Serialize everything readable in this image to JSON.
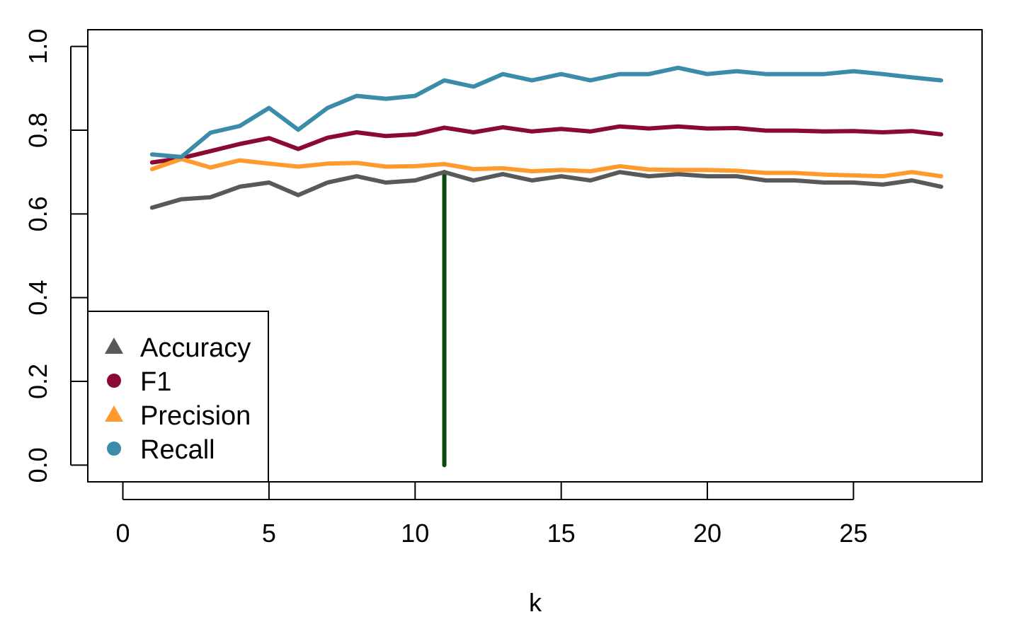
{
  "chart_data": {
    "type": "line",
    "title": "",
    "xlabel": "k",
    "ylabel": "",
    "xlim": [
      -1.2,
      29.4
    ],
    "ylim": [
      -0.04,
      1.04
    ],
    "xticks": [
      0,
      5,
      10,
      15,
      20,
      25
    ],
    "xtick_labels": [
      "0",
      "5",
      "10",
      "15",
      "20",
      "25"
    ],
    "yticks": [
      0.0,
      0.2,
      0.4,
      0.6,
      0.8,
      1.0
    ],
    "ytick_labels": [
      "0.0",
      "0.2",
      "0.4",
      "0.6",
      "0.8",
      "1.0"
    ],
    "grid": false,
    "legend_position": "bottom-left",
    "x": [
      1,
      2,
      3,
      4,
      5,
      6,
      7,
      8,
      9,
      10,
      11,
      12,
      13,
      14,
      15,
      16,
      17,
      18,
      19,
      20,
      21,
      22,
      23,
      24,
      25,
      26,
      27,
      28
    ],
    "series": [
      {
        "name": "Accuracy",
        "color": "#595959",
        "marker": "triangle",
        "values": [
          0.615,
          0.635,
          0.64,
          0.665,
          0.675,
          0.645,
          0.675,
          0.69,
          0.675,
          0.68,
          0.7,
          0.68,
          0.695,
          0.68,
          0.69,
          0.68,
          0.7,
          0.69,
          0.695,
          0.69,
          0.69,
          0.68,
          0.68,
          0.675,
          0.675,
          0.67,
          0.68,
          0.665
        ]
      },
      {
        "name": "F1",
        "color": "#8B0A33",
        "marker": "circle",
        "values": [
          0.723,
          0.733,
          0.75,
          0.767,
          0.781,
          0.755,
          0.782,
          0.795,
          0.786,
          0.79,
          0.806,
          0.795,
          0.807,
          0.797,
          0.803,
          0.797,
          0.809,
          0.804,
          0.809,
          0.804,
          0.805,
          0.799,
          0.799,
          0.797,
          0.798,
          0.795,
          0.798,
          0.79
        ]
      },
      {
        "name": "Precision",
        "color": "#FF9A2E",
        "marker": "triangle",
        "values": [
          0.707,
          0.731,
          0.711,
          0.728,
          0.72,
          0.713,
          0.72,
          0.722,
          0.713,
          0.714,
          0.719,
          0.707,
          0.709,
          0.702,
          0.705,
          0.702,
          0.714,
          0.706,
          0.705,
          0.705,
          0.703,
          0.698,
          0.698,
          0.694,
          0.692,
          0.69,
          0.7,
          0.69
        ]
      },
      {
        "name": "Recall",
        "color": "#3A8CA8",
        "marker": "circle",
        "values": [
          0.742,
          0.736,
          0.794,
          0.81,
          0.853,
          0.801,
          0.853,
          0.882,
          0.875,
          0.882,
          0.919,
          0.904,
          0.934,
          0.919,
          0.934,
          0.919,
          0.934,
          0.934,
          0.949,
          0.934,
          0.941,
          0.934,
          0.934,
          0.934,
          0.941,
          0.934,
          0.926,
          0.919
        ]
      }
    ],
    "vertical_marker": {
      "x": 11,
      "y_from": 0.0,
      "y_to": 0.7,
      "color": "#0B4A0B"
    }
  }
}
